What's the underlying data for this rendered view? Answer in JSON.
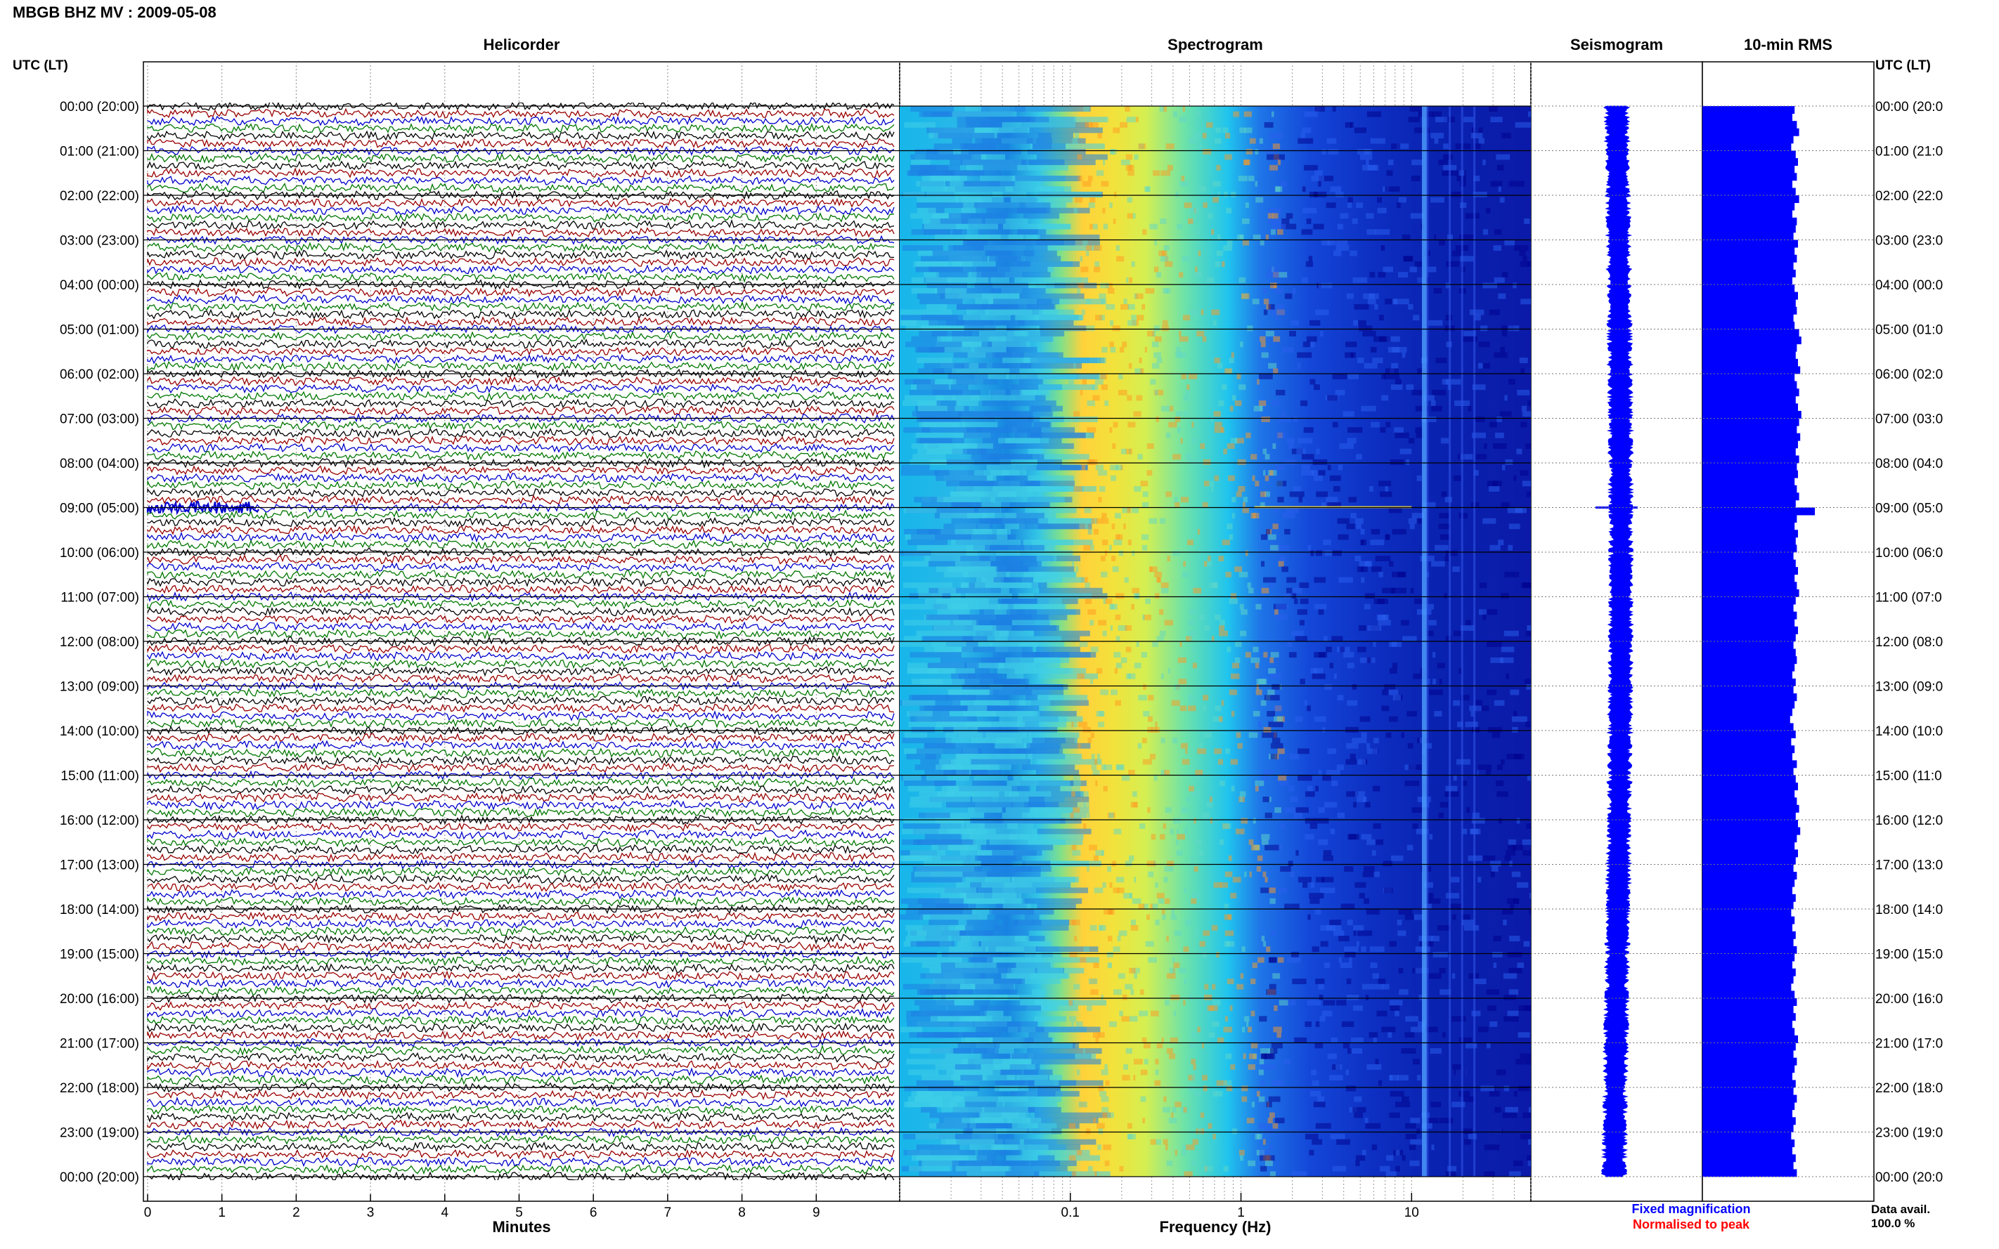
{
  "header": {
    "title": "MBGB BHZ MV : 2009-05-08",
    "utc_lt_label": "UTC (LT)"
  },
  "panels": {
    "helicorder": "Helicorder",
    "spectrogram": "Spectrogram",
    "seismogram": "Seismogram",
    "rms": "10-min RMS"
  },
  "axes": {
    "minutes_label": "Minutes",
    "frequency_label": "Frequency (Hz)"
  },
  "legend": {
    "fixed": "Fixed magnification",
    "normalised": "Normalised to peak",
    "fixed_color": "#0000ff",
    "normalised_color": "#ff0000"
  },
  "data_avail": {
    "label": "Data avail.",
    "value": "100.0 %"
  },
  "chart_data": [
    {
      "type": "line",
      "title": "Helicorder",
      "xlabel": "Minutes",
      "x_ticks": [
        "0",
        "1",
        "2",
        "3",
        "4",
        "5",
        "6",
        "7",
        "8",
        "9"
      ],
      "xlim": [
        0,
        10
      ],
      "rows_per_hour": 6,
      "trace_colors": [
        "#000000",
        "#990000",
        "#0000cc",
        "#007700"
      ],
      "event": {
        "time_utc": "09:00",
        "minutes": [
          0,
          1.5
        ],
        "color": "#0000cc"
      }
    },
    {
      "type": "heatmap",
      "title": "Spectrogram",
      "xlabel": "Frequency (Hz)",
      "scale": "log",
      "x_ticks": [
        "0.1",
        "1",
        "10"
      ],
      "xlim": [
        0.01,
        50
      ],
      "peak_band_hz": [
        0.2,
        0.5
      ],
      "colormap": [
        "#00008b",
        "#0000ff",
        "#00bfff",
        "#00ffff",
        "#7fff7f",
        "#ffff00",
        "#ff8c00"
      ]
    },
    {
      "type": "line",
      "title": "Seismogram",
      "legend": [
        "Fixed magnification",
        "Normalised to peak"
      ]
    },
    {
      "type": "bar",
      "title": "10-min RMS",
      "orientation": "horizontal",
      "bar_color": "#0000ff",
      "values_relative": [
        0.82,
        0.8,
        0.84,
        0.86,
        0.81,
        0.79,
        0.83,
        0.85,
        0.82,
        0.84,
        0.8,
        0.83,
        0.86,
        0.82,
        0.8,
        0.84,
        0.83,
        0.81,
        0.85,
        0.82,
        0.84,
        0.81,
        0.83,
        0.8,
        0.82,
        0.85,
        0.83,
        0.84,
        0.81,
        0.82,
        0.86,
        0.88,
        0.84,
        0.83,
        0.85,
        0.87,
        0.82,
        0.84,
        0.86,
        0.83,
        0.85,
        0.88,
        0.86,
        0.84,
        0.87,
        0.85,
        0.83,
        0.86,
        0.84,
        0.85,
        0.82,
        0.84,
        0.86,
        0.83,
        1.0,
        0.84,
        0.82,
        0.85,
        0.83,
        0.84,
        0.81,
        0.83,
        0.85,
        0.82,
        0.84,
        0.86,
        0.83,
        0.81,
        0.84,
        0.82,
        0.85,
        0.83,
        0.81,
        0.83,
        0.84,
        0.82,
        0.8,
        0.83,
        0.81,
        0.84,
        0.82,
        0.8,
        0.78,
        0.81,
        0.83,
        0.79,
        0.82,
        0.8,
        0.84,
        0.81,
        0.83,
        0.85,
        0.82,
        0.84,
        0.86,
        0.83,
        0.85,
        0.87,
        0.84,
        0.82,
        0.85,
        0.83,
        0.81,
        0.84,
        0.82,
        0.8,
        0.83,
        0.81,
        0.79,
        0.82,
        0.8,
        0.83,
        0.81,
        0.84,
        0.82,
        0.8,
        0.83,
        0.81,
        0.79,
        0.82,
        0.84,
        0.81,
        0.83,
        0.8,
        0.82,
        0.85,
        0.83,
        0.81,
        0.84,
        0.82,
        0.8,
        0.83,
        0.81,
        0.84,
        0.82,
        0.8,
        0.83,
        0.81,
        0.79,
        0.82,
        0.8,
        0.83,
        0.81,
        0.84
      ]
    }
  ],
  "time_labels": [
    "00:00 (20:00)",
    "01:00 (21:00)",
    "02:00 (22:00)",
    "03:00 (23:00)",
    "04:00 (00:00)",
    "05:00 (01:00)",
    "06:00 (02:00)",
    "07:00 (03:00)",
    "08:00 (04:00)",
    "09:00 (05:00)",
    "10:00 (06:00)",
    "11:00 (07:00)",
    "12:00 (08:00)",
    "13:00 (09:00)",
    "14:00 (10:00)",
    "15:00 (11:00)",
    "16:00 (12:00)",
    "17:00 (13:00)",
    "18:00 (14:00)",
    "19:00 (15:00)",
    "20:00 (16:00)",
    "21:00 (17:00)",
    "22:00 (18:00)",
    "23:00 (19:00)",
    "00:00 (20:00)"
  ],
  "time_labels_right": [
    "00:00 (20:0",
    "01:00 (21:0",
    "02:00 (22:0",
    "03:00 (23:0",
    "04:00 (00:0",
    "05:00 (01:0",
    "06:00 (02:0",
    "07:00 (03:0",
    "08:00 (04:0",
    "09:00 (05:0",
    "10:00 (06:0",
    "11:00 (07:0",
    "12:00 (08:0",
    "13:00 (09:0",
    "14:00 (10:0",
    "15:00 (11:0",
    "16:00 (12:0",
    "17:00 (13:0",
    "18:00 (14:0",
    "19:00 (15:0",
    "20:00 (16:0",
    "21:00 (17:0",
    "22:00 (18:0",
    "23:00 (19:0",
    "00:00 (20:0"
  ]
}
